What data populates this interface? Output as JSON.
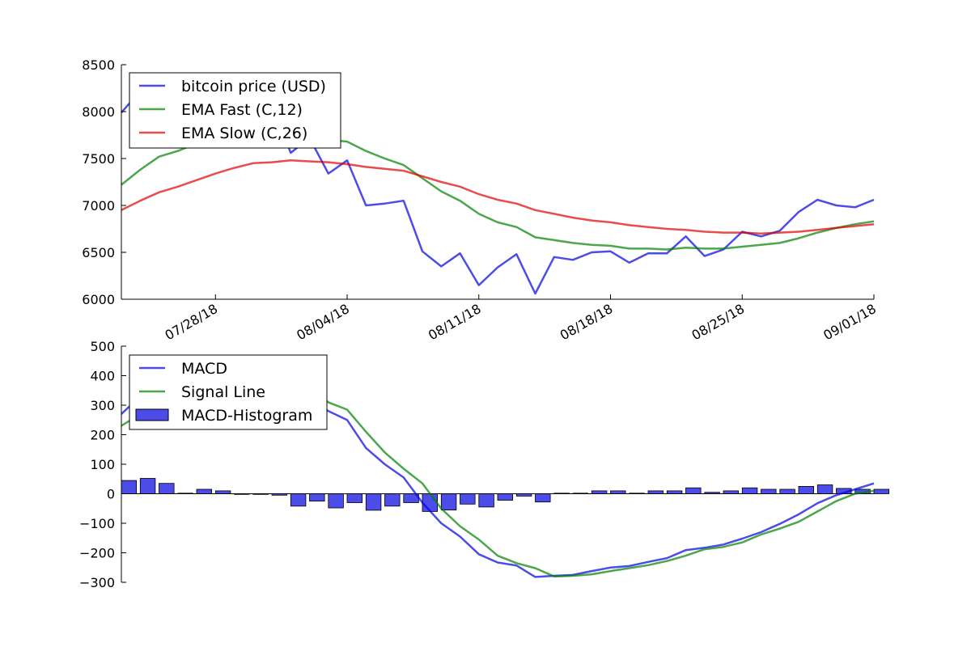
{
  "colors": {
    "blue": "#0000e0",
    "green": "#008000",
    "red": "#e00000"
  },
  "chart_data": [
    {
      "type": "line",
      "x_dates": [
        "07/23/18",
        "07/24/18",
        "07/25/18",
        "07/26/18",
        "07/27/18",
        "07/28/18",
        "07/29/18",
        "07/30/18",
        "07/31/18",
        "08/01/18",
        "08/02/18",
        "08/03/18",
        "08/04/18",
        "08/05/18",
        "08/06/18",
        "08/07/18",
        "08/08/18",
        "08/09/18",
        "08/10/18",
        "08/11/18",
        "08/12/18",
        "08/13/18",
        "08/14/18",
        "08/15/18",
        "08/16/18",
        "08/17/18",
        "08/18/18",
        "08/19/18",
        "08/20/18",
        "08/21/18",
        "08/22/18",
        "08/23/18",
        "08/24/18",
        "08/25/18",
        "08/26/18",
        "08/27/18",
        "08/28/18",
        "08/29/18",
        "08/30/18",
        "08/31/18",
        "09/01/18"
      ],
      "xticks": [
        "07/28/18",
        "08/04/18",
        "08/11/18",
        "08/18/18",
        "08/25/18",
        "09/01/18"
      ],
      "ylim": [
        6000,
        8500
      ],
      "yticks": [
        "6000",
        "6500",
        "7000",
        "7500",
        "8000",
        "8500"
      ],
      "legend_position": "upper-left",
      "series": [
        {
          "name": "bitcoin price (USD)",
          "color": "blue",
          "values": [
            7990,
            8220,
            8200,
            8130,
            8180,
            8230,
            8200,
            8170,
            8100,
            7560,
            7720,
            7340,
            7480,
            7000,
            7020,
            7050,
            6510,
            6350,
            6490,
            6150,
            6340,
            6480,
            6060,
            6450,
            6420,
            6500,
            6510,
            6390,
            6490,
            6490,
            6670,
            6460,
            6530,
            6720,
            6670,
            6730,
            6930,
            7060,
            7000,
            6980,
            7060
          ]
        },
        {
          "name": "EMA Fast (C,12)",
          "color": "green",
          "values": [
            7220,
            7380,
            7520,
            7580,
            7660,
            7740,
            7800,
            7840,
            7860,
            7780,
            7760,
            7700,
            7680,
            7580,
            7500,
            7430,
            7290,
            7150,
            7050,
            6910,
            6820,
            6770,
            6660,
            6630,
            6600,
            6580,
            6570,
            6540,
            6540,
            6530,
            6550,
            6540,
            6540,
            6560,
            6580,
            6600,
            6650,
            6710,
            6760,
            6800,
            6830
          ]
        },
        {
          "name": "EMA Slow (C,26)",
          "color": "red",
          "values": [
            6950,
            7050,
            7140,
            7200,
            7270,
            7340,
            7400,
            7450,
            7460,
            7480,
            7470,
            7460,
            7440,
            7410,
            7390,
            7370,
            7310,
            7250,
            7200,
            7120,
            7060,
            7020,
            6950,
            6910,
            6870,
            6840,
            6820,
            6790,
            6770,
            6750,
            6740,
            6720,
            6710,
            6710,
            6700,
            6710,
            6720,
            6740,
            6760,
            6780,
            6800
          ]
        }
      ]
    },
    {
      "type": "line",
      "x_dates": [
        "07/23/18",
        "07/24/18",
        "07/25/18",
        "07/26/18",
        "07/27/18",
        "07/28/18",
        "07/29/18",
        "07/30/18",
        "07/31/18",
        "08/01/18",
        "08/02/18",
        "08/03/18",
        "08/04/18",
        "08/05/18",
        "08/06/18",
        "08/07/18",
        "08/08/18",
        "08/09/18",
        "08/10/18",
        "08/11/18",
        "08/12/18",
        "08/13/18",
        "08/14/18",
        "08/15/18",
        "08/16/18",
        "08/17/18",
        "08/18/18",
        "08/19/18",
        "08/20/18",
        "08/21/18",
        "08/22/18",
        "08/23/18",
        "08/24/18",
        "08/25/18",
        "08/26/18",
        "08/27/18",
        "08/28/18",
        "08/29/18",
        "08/30/18",
        "08/31/18",
        "09/01/18"
      ],
      "ylim": [
        -300,
        500
      ],
      "yticks": [
        "500",
        "400",
        "300",
        "200",
        "100",
        "0",
        "−100",
        "−200",
        "−300"
      ],
      "legend_position": "upper-left",
      "series": [
        {
          "name": "MACD",
          "color": "blue",
          "values": [
            270,
            330,
            380,
            370,
            380,
            390,
            400,
            390,
            400,
            350,
            330,
            280,
            250,
            155,
            100,
            55,
            -30,
            -100,
            -145,
            -205,
            -233,
            -243,
            -282,
            -278,
            -275,
            -262,
            -250,
            -245,
            -231,
            -218,
            -191,
            -183,
            -172,
            -152,
            -130,
            -102,
            -70,
            -32,
            -5,
            15,
            35
          ]
        },
        {
          "name": "Signal Line",
          "color": "green",
          "values": [
            230,
            270,
            320,
            365,
            365,
            380,
            385,
            380,
            405,
            390,
            360,
            310,
            285,
            210,
            140,
            85,
            35,
            -50,
            -110,
            -155,
            -210,
            -235,
            -252,
            -280,
            -278,
            -273,
            -262,
            -252,
            -242,
            -228,
            -210,
            -188,
            -180,
            -165,
            -138,
            -118,
            -95,
            -60,
            -25,
            0,
            10
          ]
        },
        {
          "name": "MACD-Histogram",
          "type": "bar",
          "color": "blue",
          "values": [
            45,
            52,
            35,
            2,
            15,
            10,
            0,
            0,
            -5,
            -42,
            -25,
            -48,
            -30,
            -56,
            -42,
            -30,
            -60,
            -55,
            -35,
            -45,
            -22,
            -8,
            -28,
            2,
            2,
            10,
            10,
            2,
            10,
            10,
            20,
            5,
            10,
            20,
            15,
            15,
            25,
            30,
            18,
            15,
            15
          ]
        }
      ]
    }
  ]
}
